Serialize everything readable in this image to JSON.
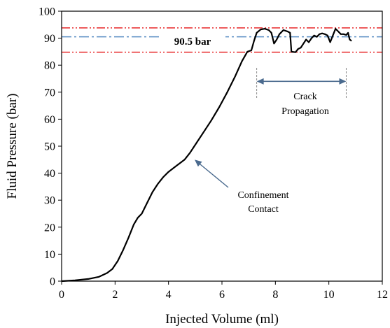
{
  "chart_data": {
    "type": "line",
    "xlabel": "Injected Volume (ml)",
    "ylabel": "Fluid Pressure (bar)",
    "xlim": [
      0,
      12
    ],
    "ylim": [
      0,
      100
    ],
    "x_ticks": [
      "0",
      "2",
      "4",
      "6",
      "8",
      "10",
      "12"
    ],
    "y_ticks": [
      "0",
      "10",
      "20",
      "30",
      "40",
      "50",
      "60",
      "70",
      "80",
      "90",
      "100"
    ],
    "grid": false,
    "series": [
      {
        "color": "#000000",
        "points": [
          [
            0.0,
            0.0
          ],
          [
            0.5,
            0.3
          ],
          [
            1.0,
            0.8
          ],
          [
            1.4,
            1.6
          ],
          [
            1.7,
            3.0
          ],
          [
            1.9,
            4.5
          ],
          [
            2.1,
            7.5
          ],
          [
            2.3,
            11.5
          ],
          [
            2.5,
            16.0
          ],
          [
            2.7,
            21.0
          ],
          [
            2.85,
            23.5
          ],
          [
            3.0,
            25.0
          ],
          [
            3.2,
            29.0
          ],
          [
            3.4,
            33.0
          ],
          [
            3.6,
            36.0
          ],
          [
            3.8,
            38.5
          ],
          [
            4.0,
            40.5
          ],
          [
            4.2,
            42.0
          ],
          [
            4.4,
            43.5
          ],
          [
            4.6,
            45.0
          ],
          [
            4.8,
            47.5
          ],
          [
            5.0,
            50.5
          ],
          [
            5.3,
            55.0
          ],
          [
            5.6,
            59.5
          ],
          [
            5.9,
            64.5
          ],
          [
            6.2,
            70.0
          ],
          [
            6.5,
            76.0
          ],
          [
            6.75,
            81.5
          ],
          [
            6.95,
            85.0
          ],
          [
            7.1,
            85.5
          ],
          [
            7.2,
            89.0
          ],
          [
            7.3,
            92.0
          ],
          [
            7.45,
            93.2
          ],
          [
            7.6,
            93.5
          ],
          [
            7.75,
            93.0
          ],
          [
            7.85,
            92.0
          ],
          [
            7.95,
            88.0
          ],
          [
            8.05,
            89.5
          ],
          [
            8.15,
            91.5
          ],
          [
            8.3,
            93.0
          ],
          [
            8.45,
            92.5
          ],
          [
            8.55,
            92.0
          ],
          [
            8.6,
            85.0
          ],
          [
            8.75,
            84.8
          ],
          [
            8.85,
            86.0
          ],
          [
            8.95,
            86.5
          ],
          [
            9.05,
            88.0
          ],
          [
            9.15,
            89.5
          ],
          [
            9.25,
            88.5
          ],
          [
            9.35,
            90.0
          ],
          [
            9.45,
            91.0
          ],
          [
            9.55,
            90.5
          ],
          [
            9.65,
            91.5
          ],
          [
            9.75,
            91.8
          ],
          [
            9.85,
            91.5
          ],
          [
            9.95,
            91.0
          ],
          [
            10.05,
            88.5
          ],
          [
            10.15,
            91.0
          ],
          [
            10.25,
            93.5
          ],
          [
            10.35,
            92.5
          ],
          [
            10.45,
            91.5
          ],
          [
            10.55,
            91.5
          ],
          [
            10.65,
            91.2
          ],
          [
            10.72,
            92.0
          ],
          [
            10.78,
            89.5
          ],
          [
            10.85,
            89.0
          ]
        ]
      }
    ],
    "reference_lines": [
      {
        "y": 93.8,
        "style": "dash-dot-dot",
        "color": "#e8282a"
      },
      {
        "y": 84.8,
        "style": "dash-dot-dot",
        "color": "#e8282a"
      },
      {
        "y": 90.5,
        "style": "dash-dot",
        "color": "#5b8ec4"
      }
    ],
    "annotations": [
      {
        "text": "90.5 bar",
        "bold": true
      },
      {
        "lines": [
          "Crack",
          "Propagation"
        ],
        "span_x": [
          7.3,
          10.65
        ]
      },
      {
        "lines": [
          "Confinement",
          "Contact"
        ],
        "arrow_to": [
          4.9,
          45.5
        ]
      }
    ]
  }
}
